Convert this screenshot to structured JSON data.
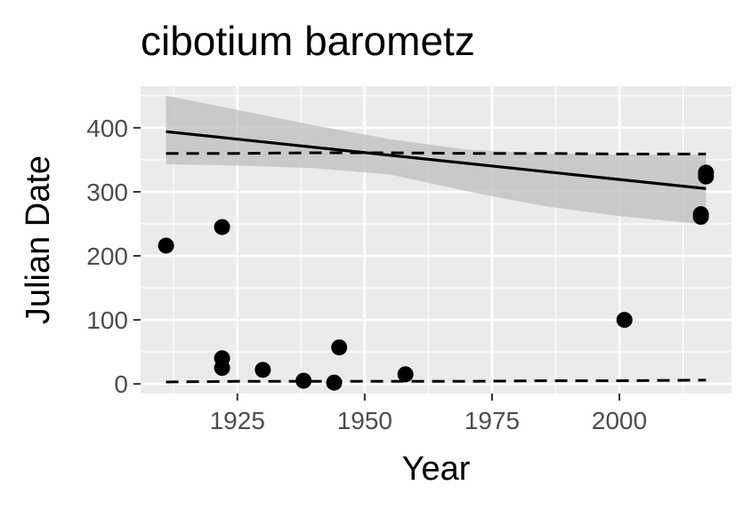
{
  "chart_data": {
    "type": "scatter",
    "title": "cibotium barometz",
    "xlabel": "Year",
    "ylabel": "Julian Date",
    "xlim": [
      1906,
      2022
    ],
    "ylim": [
      -15,
      465
    ],
    "x_ticks": [
      1925,
      1950,
      1975,
      2000
    ],
    "y_ticks": [
      0,
      100,
      200,
      300,
      400
    ],
    "grid": true,
    "legend": "none",
    "colors": {
      "panel": "#ebebeb",
      "grid": "#ffffff",
      "points": "#000000",
      "band": "#bdbdbd"
    },
    "points": [
      {
        "x": 1911,
        "y": 216
      },
      {
        "x": 1922,
        "y": 245
      },
      {
        "x": 1922,
        "y": 40
      },
      {
        "x": 1922,
        "y": 25
      },
      {
        "x": 1930,
        "y": 22
      },
      {
        "x": 1938,
        "y": 5
      },
      {
        "x": 1944,
        "y": 2
      },
      {
        "x": 1945,
        "y": 57
      },
      {
        "x": 1958,
        "y": 15
      },
      {
        "x": 2001,
        "y": 100
      },
      {
        "x": 2016,
        "y": 265
      },
      {
        "x": 2016,
        "y": 261
      },
      {
        "x": 2017,
        "y": 330
      },
      {
        "x": 2017,
        "y": 324
      }
    ],
    "trend_line": {
      "x": [
        1911,
        2017
      ],
      "y": [
        394,
        305
      ]
    },
    "confidence_band": {
      "x": [
        1911,
        1925,
        1940,
        1955,
        1970,
        1985,
        2000,
        2017
      ],
      "upper": [
        450,
        428,
        404,
        382,
        366,
        360,
        358,
        358
      ],
      "lower": [
        343,
        341,
        337,
        327,
        301,
        278,
        262,
        249
      ]
    },
    "quantile_upper": {
      "x": [
        1911,
        1925,
        1940,
        1955,
        1970,
        1985,
        2000,
        2017
      ],
      "y": [
        360,
        360,
        361,
        361,
        360,
        360,
        359,
        359
      ]
    },
    "quantile_lower": {
      "x": [
        1911,
        1925,
        1940,
        1955,
        1970,
        1985,
        2000,
        2017
      ],
      "y": [
        3,
        4,
        4,
        4,
        4,
        5,
        5,
        6
      ]
    }
  }
}
